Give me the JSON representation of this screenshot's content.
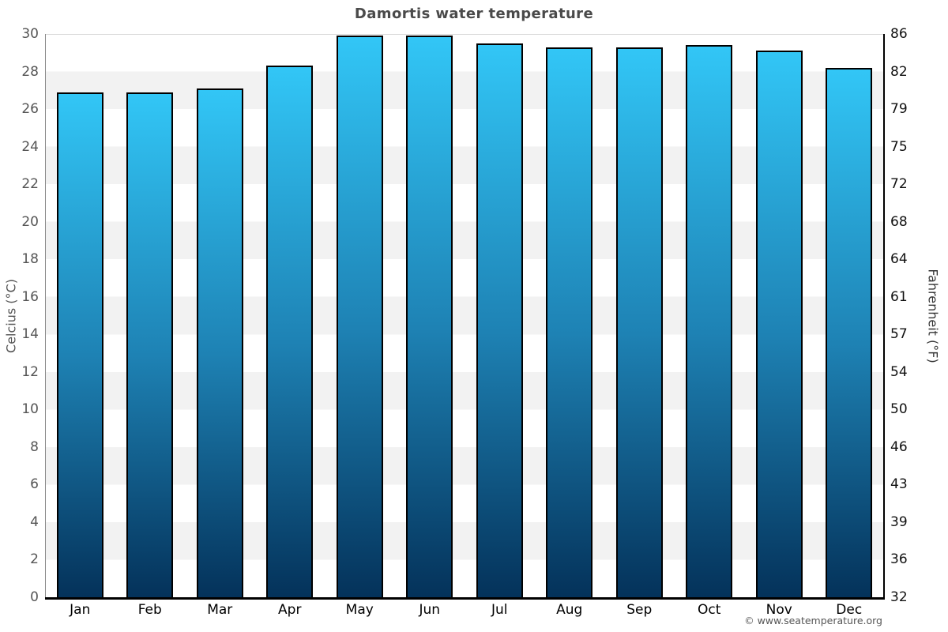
{
  "title": "Damortis water temperature",
  "axis": {
    "left_label": "Celcius (°C)",
    "right_label": "Fahrenheit (°F)"
  },
  "footer": {
    "copyright": "© www.seatemperature.org"
  },
  "colors": {
    "bar_top": "#32c6f6",
    "bar_mid": "#1e82b4",
    "bar_bottom": "#04325a",
    "band_light": "#ffffff",
    "band_gray": "#f2f2f2",
    "title_text": "#4a4a4a",
    "left_tick_text": "#555555",
    "right_tick_text": "#111111"
  },
  "chart_data": {
    "type": "bar",
    "title": "Damortis water temperature",
    "categories": [
      "Jan",
      "Feb",
      "Mar",
      "Apr",
      "May",
      "Jun",
      "Jul",
      "Aug",
      "Sep",
      "Oct",
      "Nov",
      "Dec"
    ],
    "values": [
      26.9,
      26.9,
      27.1,
      28.3,
      29.9,
      29.9,
      29.5,
      29.3,
      29.3,
      29.4,
      29.1,
      28.2
    ],
    "xlabel": "",
    "ylabel_left": "Celcius (°C)",
    "ylabel_right": "Fahrenheit (°F)",
    "ylim": [
      0,
      30
    ],
    "yticks_celsius": [
      30,
      28,
      26,
      24,
      22,
      20,
      18,
      16,
      14,
      12,
      10,
      8,
      6,
      4,
      2,
      0
    ],
    "yticks_fahrenheit": [
      86,
      82,
      79,
      75,
      72,
      68,
      64,
      61,
      57,
      54,
      50,
      46,
      43,
      39,
      36,
      32
    ],
    "legend": "none",
    "grid": "alternating-horizontal-bands"
  }
}
